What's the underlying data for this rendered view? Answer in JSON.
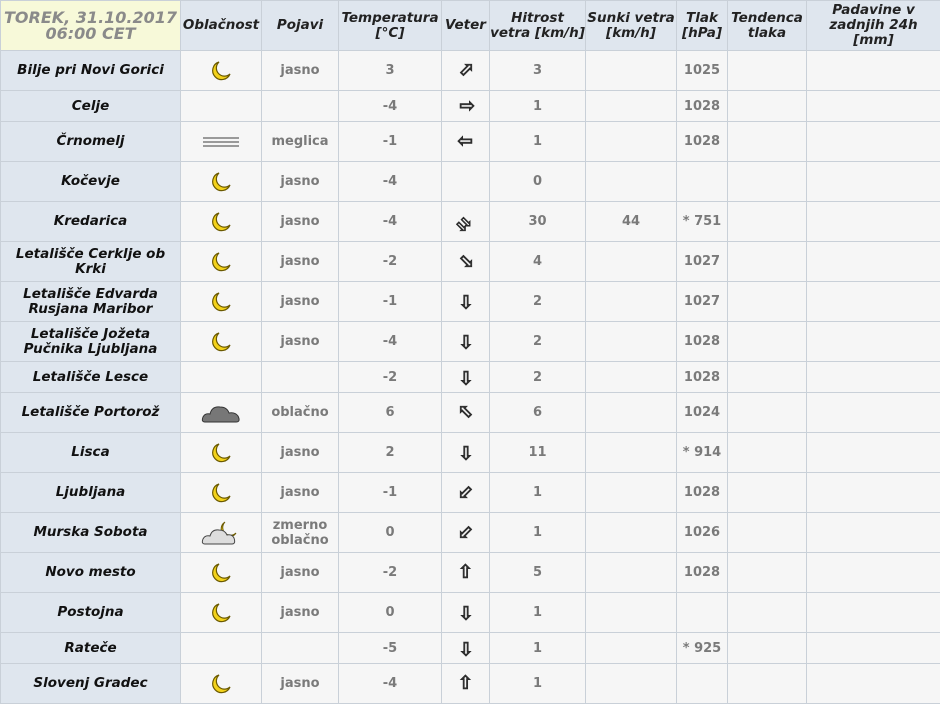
{
  "header": {
    "date": "TOREK, 31.10.2017",
    "time": "06:00 CET",
    "columns": [
      "Oblačnost",
      "Pojavi",
      "Temperatura [°C]",
      "Veter",
      "Hitrost vetra [km/h]",
      "Sunki vetra [km/h]",
      "Tlak [hPa]",
      "Tendenca tlaka",
      "Padavine v zadnjih 24h [mm]"
    ]
  },
  "rows": [
    {
      "name": "Bilje pri Novi Gorici",
      "sky": "moon-icon",
      "phen": "jasno",
      "temp": "3",
      "wind": "ne",
      "speed": "3",
      "gust": "",
      "press": "1025",
      "tend": "",
      "rain": ""
    },
    {
      "name": "Celje",
      "sky": "",
      "phen": "",
      "temp": "-4",
      "wind": "e",
      "speed": "1",
      "gust": "",
      "press": "1028",
      "tend": "",
      "rain": ""
    },
    {
      "name": "Črnomelj",
      "sky": "fog-icon",
      "phen": "meglica",
      "temp": "-1",
      "wind": "w",
      "speed": "1",
      "gust": "",
      "press": "1028",
      "tend": "",
      "rain": ""
    },
    {
      "name": "Kočevje",
      "sky": "moon-icon",
      "phen": "jasno",
      "temp": "-4",
      "wind": "",
      "speed": "0",
      "gust": "",
      "press": "",
      "tend": "",
      "rain": ""
    },
    {
      "name": "Kredarica",
      "sky": "moon-icon",
      "phen": "jasno",
      "temp": "-4",
      "wind": "se-strong",
      "speed": "30",
      "gust": "44",
      "press": "* 751",
      "tend": "",
      "rain": ""
    },
    {
      "name": "Letališče Cerklje ob Krki",
      "sky": "moon-icon",
      "phen": "jasno",
      "temp": "-2",
      "wind": "se",
      "speed": "4",
      "gust": "",
      "press": "1027",
      "tend": "",
      "rain": ""
    },
    {
      "name": "Letališče Edvarda Rusjana Maribor",
      "sky": "moon-icon",
      "phen": "jasno",
      "temp": "-1",
      "wind": "s",
      "speed": "2",
      "gust": "",
      "press": "1027",
      "tend": "",
      "rain": ""
    },
    {
      "name": "Letališče Jožeta Pučnika Ljubljana",
      "sky": "moon-icon",
      "phen": "jasno",
      "temp": "-4",
      "wind": "s",
      "speed": "2",
      "gust": "",
      "press": "1028",
      "tend": "",
      "rain": ""
    },
    {
      "name": "Letališče Lesce",
      "sky": "",
      "phen": "",
      "temp": "-2",
      "wind": "s",
      "speed": "2",
      "gust": "",
      "press": "1028",
      "tend": "",
      "rain": ""
    },
    {
      "name": "Letališče Portorož",
      "sky": "cloud-icon",
      "phen": "oblačno",
      "temp": "6",
      "wind": "nw",
      "speed": "6",
      "gust": "",
      "press": "1024",
      "tend": "",
      "rain": ""
    },
    {
      "name": "Lisca",
      "sky": "moon-icon",
      "phen": "jasno",
      "temp": "2",
      "wind": "s",
      "speed": "11",
      "gust": "",
      "press": "* 914",
      "tend": "",
      "rain": ""
    },
    {
      "name": "Ljubljana",
      "sky": "moon-icon",
      "phen": "jasno",
      "temp": "-1",
      "wind": "sw",
      "speed": "1",
      "gust": "",
      "press": "1028",
      "tend": "",
      "rain": ""
    },
    {
      "name": "Murska Sobota",
      "sky": "partly-cloudy-night-icon",
      "phen": "zmerno oblačno",
      "temp": "0",
      "wind": "sw",
      "speed": "1",
      "gust": "",
      "press": "1026",
      "tend": "",
      "rain": ""
    },
    {
      "name": "Novo mesto",
      "sky": "moon-icon",
      "phen": "jasno",
      "temp": "-2",
      "wind": "n",
      "speed": "5",
      "gust": "",
      "press": "1028",
      "tend": "",
      "rain": ""
    },
    {
      "name": "Postojna",
      "sky": "moon-icon",
      "phen": "jasno",
      "temp": "0",
      "wind": "s",
      "speed": "1",
      "gust": "",
      "press": "",
      "tend": "",
      "rain": ""
    },
    {
      "name": "Rateče",
      "sky": "",
      "phen": "",
      "temp": "-5",
      "wind": "s",
      "speed": "1",
      "gust": "",
      "press": "* 925",
      "tend": "",
      "rain": ""
    },
    {
      "name": "Slovenj Gradec",
      "sky": "moon-icon",
      "phen": "jasno",
      "temp": "-4",
      "wind": "n",
      "speed": "1",
      "gust": "",
      "press": "",
      "tend": "",
      "rain": ""
    }
  ]
}
